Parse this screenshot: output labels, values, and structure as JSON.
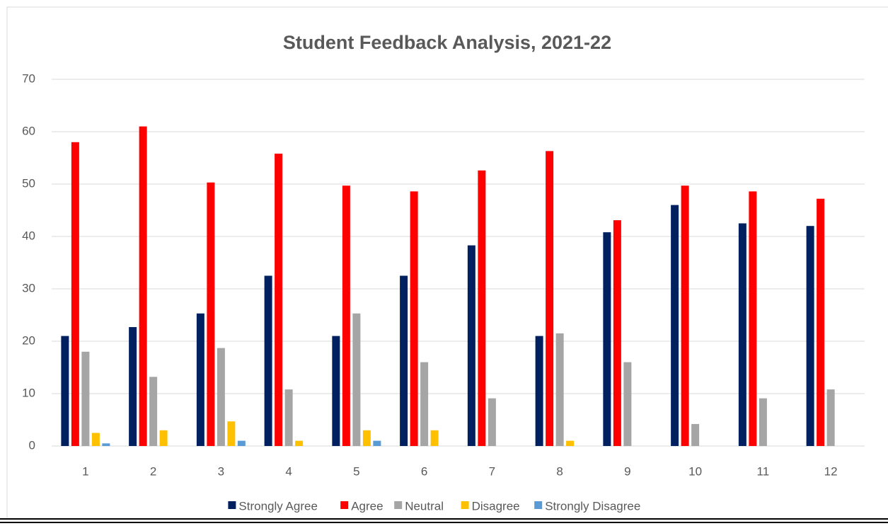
{
  "chart_data": {
    "type": "bar",
    "title": "Student Feedback Analysis, 2021-22",
    "categories": [
      "1",
      "2",
      "3",
      "4",
      "5",
      "6",
      "7",
      "8",
      "9",
      "10",
      "11",
      "12"
    ],
    "series": [
      {
        "name": "Strongly Agree",
        "color": "#002060",
        "values": [
          21,
          22.7,
          25.3,
          32.5,
          21,
          32.5,
          38.3,
          21,
          40.8,
          46,
          42.5,
          42
        ]
      },
      {
        "name": "Agree",
        "color": "#ff0000",
        "values": [
          58,
          61,
          50.3,
          55.8,
          49.7,
          48.6,
          52.6,
          56.3,
          43.1,
          49.7,
          48.6,
          47.2
        ]
      },
      {
        "name": "Neutral",
        "color": "#a5a5a5",
        "values": [
          18,
          13.2,
          18.7,
          10.8,
          25.3,
          16,
          9.1,
          21.5,
          16,
          4.2,
          9.1,
          10.8
        ]
      },
      {
        "name": "Disagree",
        "color": "#ffc000",
        "values": [
          2.5,
          3,
          4.7,
          1,
          3,
          3,
          0,
          1,
          0,
          0,
          0,
          0
        ]
      },
      {
        "name": "Strongly Disagree",
        "color": "#5b9bd5",
        "values": [
          0.5,
          0,
          1,
          0,
          1,
          0,
          0,
          0,
          0,
          0,
          0,
          0
        ]
      }
    ],
    "ylim": [
      0,
      70
    ],
    "yticks": [
      0,
      10,
      20,
      30,
      40,
      50,
      60,
      70
    ],
    "grid": true,
    "legend": "bottom"
  }
}
